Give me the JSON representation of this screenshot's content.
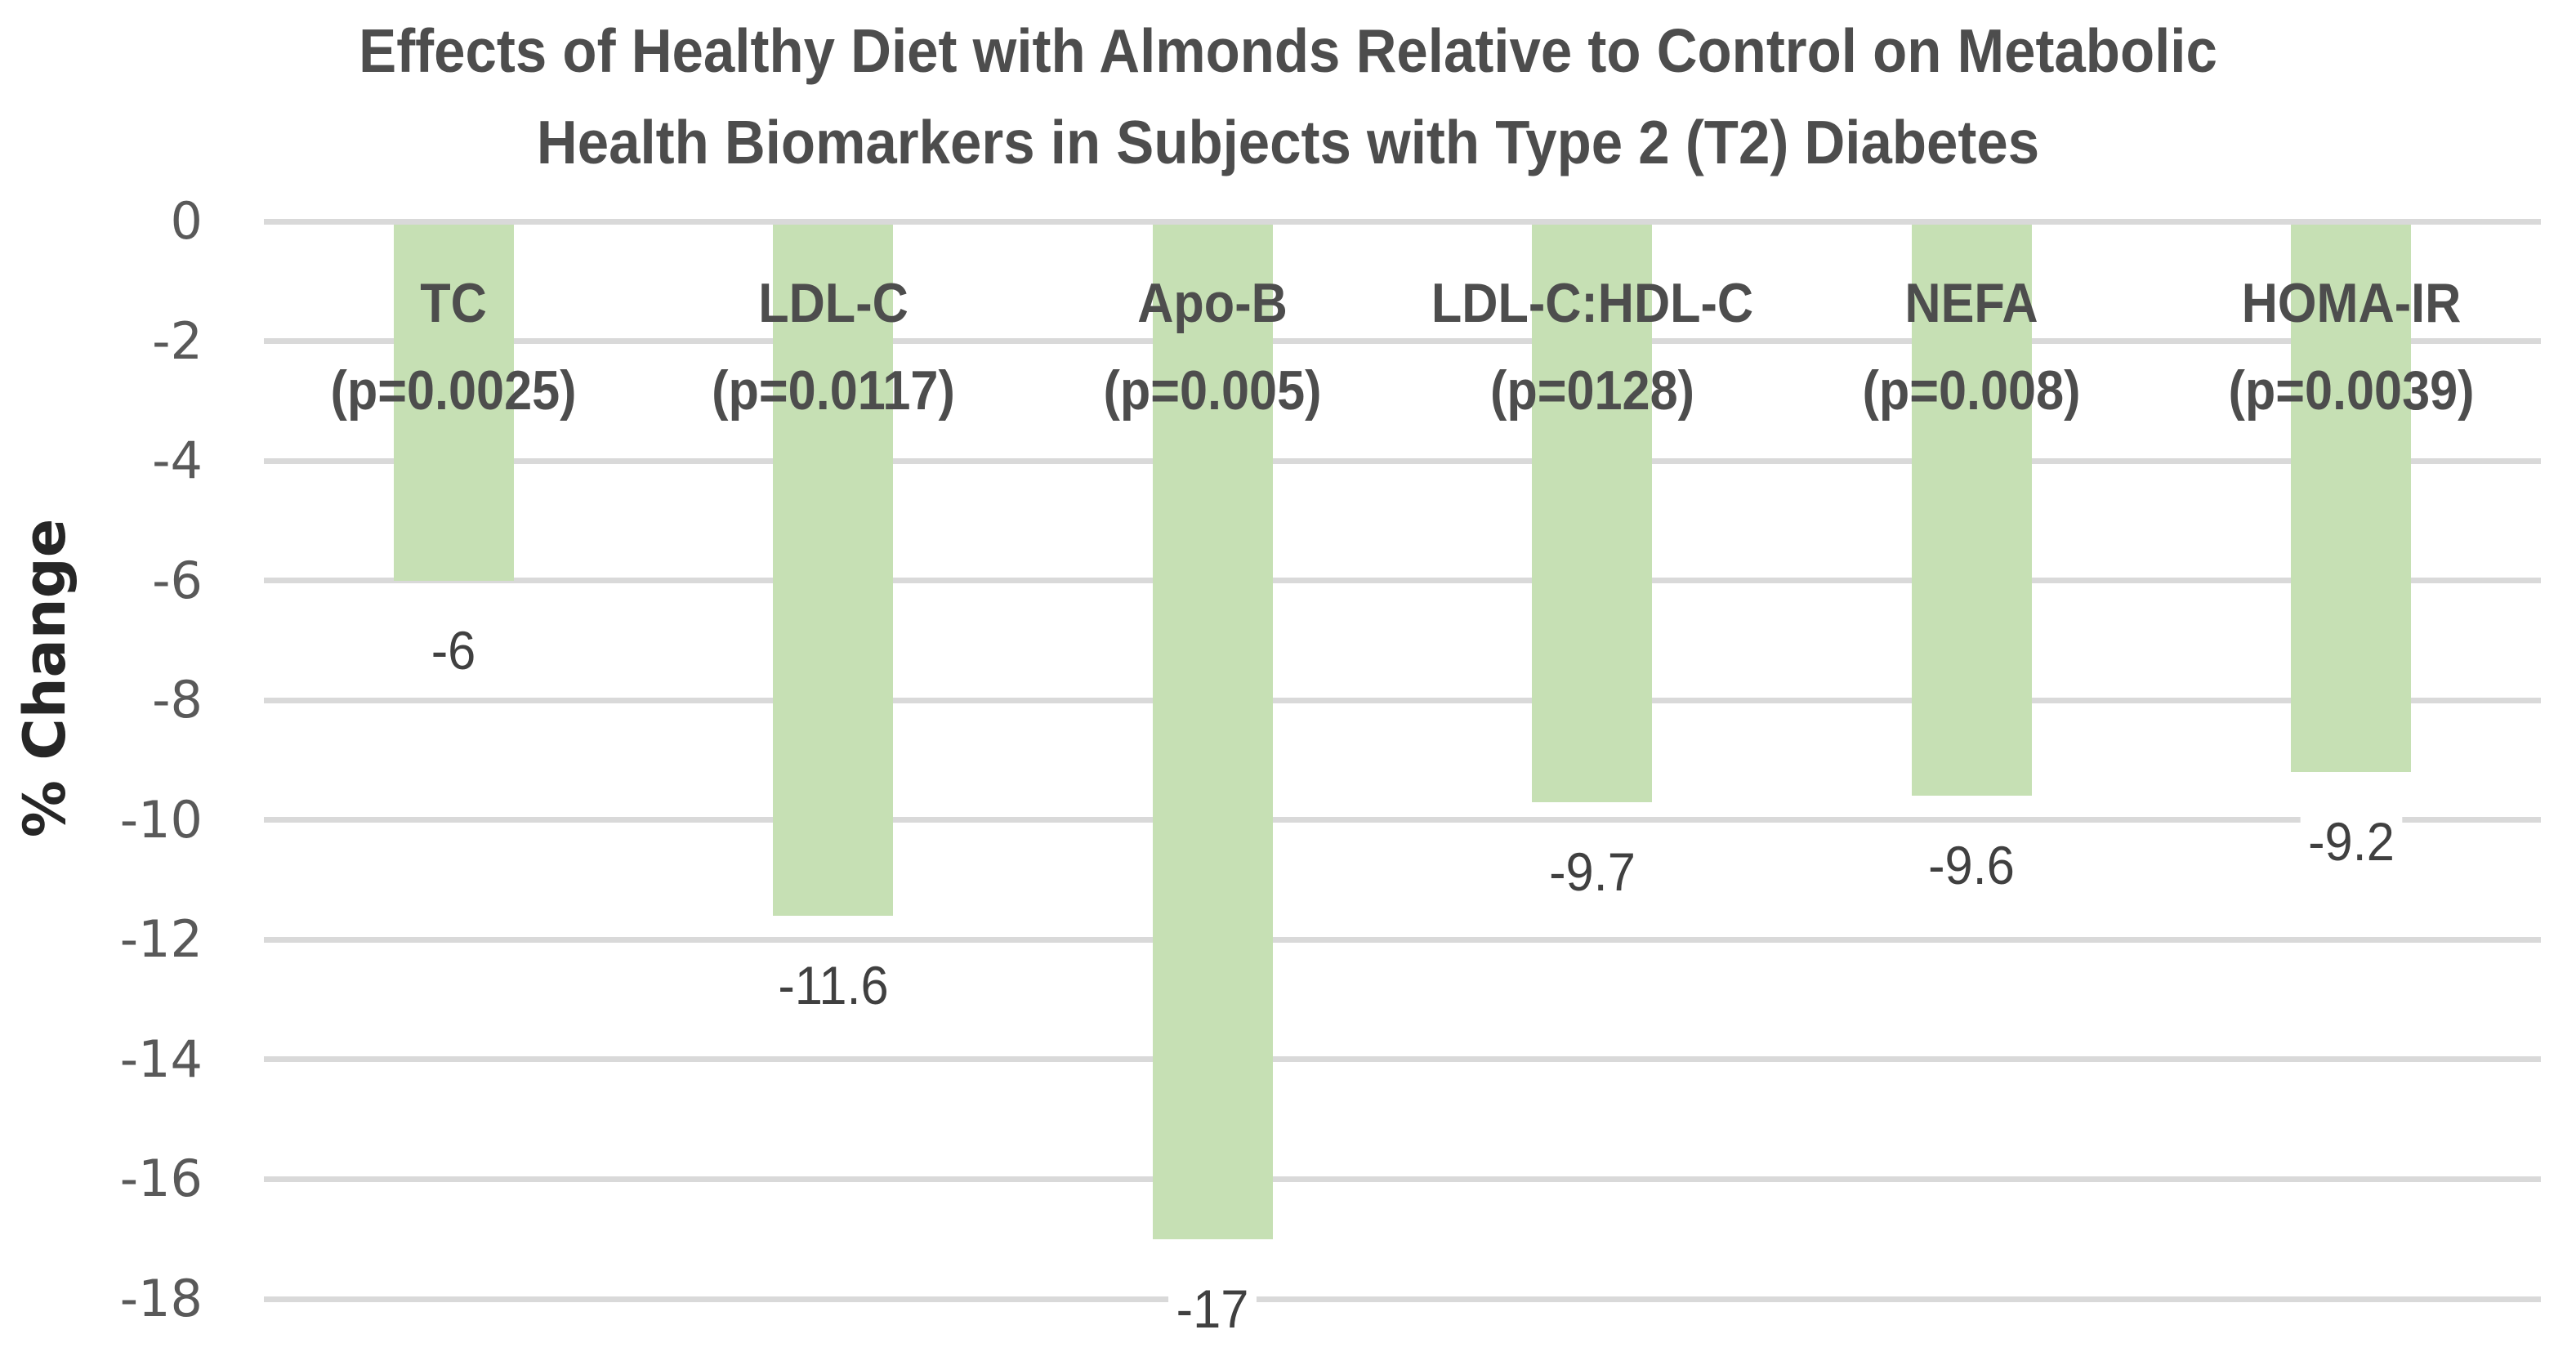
{
  "chart_data": {
    "type": "bar",
    "title": "Effects of Healthy Diet with Almonds Relative to Control on Metabolic Health Biomarkers in Subjects with Type 2 (T2) Diabetes",
    "title_line1": "Effects of Healthy Diet with Almonds Relative to Control on Metabolic",
    "title_line2": "Health Biomarkers in Subjects with Type 2 (T2) Diabetes",
    "ylabel": "% Change",
    "ylim": [
      0,
      -18
    ],
    "yticks": [
      0,
      -2,
      -4,
      -6,
      -8,
      -10,
      -12,
      -14,
      -16,
      -18
    ],
    "grid": true,
    "legend_position": "none",
    "categories": [
      "TC",
      "LDL-C",
      "Apo-B",
      "LDL-C:HDL-C",
      "NEFA",
      "HOMA-IR"
    ],
    "p_value_labels": [
      "(p=0.0025)",
      "(p=0.0117)",
      "(p=0.005)",
      "(p=0128)",
      "(p=0.008)",
      "(p=0.0039)"
    ],
    "values": [
      -6,
      -11.6,
      -17,
      -9.7,
      -9.6,
      -9.2
    ],
    "data_labels": [
      "-6",
      "-11.6",
      "-17",
      "-9.7",
      "-9.6",
      "-9.2"
    ],
    "bar_color": "#c6e0b4",
    "gridline_color": "#d9d9d9",
    "title_color": "#4d4d4d",
    "category_label_color": "#4d4d4d",
    "tick_label_color": "#595959",
    "data_label_color": "#404040",
    "ylabel_color": "#262626",
    "background_color": "#ffffff"
  }
}
